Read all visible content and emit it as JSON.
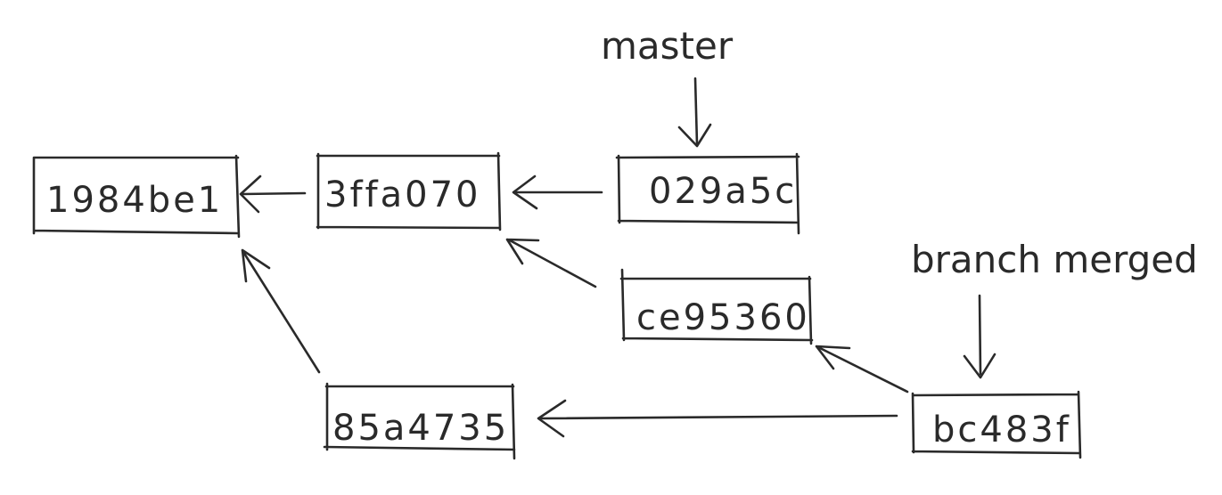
{
  "diagram": {
    "commits": [
      {
        "id": "c1",
        "hash": "1984be1"
      },
      {
        "id": "c2",
        "hash": "3ffa070"
      },
      {
        "id": "c3",
        "hash": "029a5c"
      },
      {
        "id": "c4",
        "hash": "ce95360"
      },
      {
        "id": "c5",
        "hash": "85a4735"
      },
      {
        "id": "c6",
        "hash": "bc483f"
      }
    ],
    "labels": {
      "master": "master",
      "branch_merged": "branch merged"
    },
    "edges": [
      {
        "from": "3ffa070",
        "to": "1984be1"
      },
      {
        "from": "029a5c",
        "to": "3ffa070"
      },
      {
        "from": "ce95360",
        "to": "3ffa070"
      },
      {
        "from": "85a4735",
        "to": "1984be1"
      },
      {
        "from": "bc483f",
        "to": "ce95360"
      },
      {
        "from": "bc483f",
        "to": "85a4735"
      }
    ],
    "pointers": [
      {
        "label": "master",
        "target": "029a5c"
      },
      {
        "label": "branch merged",
        "target": "bc483f"
      }
    ]
  }
}
